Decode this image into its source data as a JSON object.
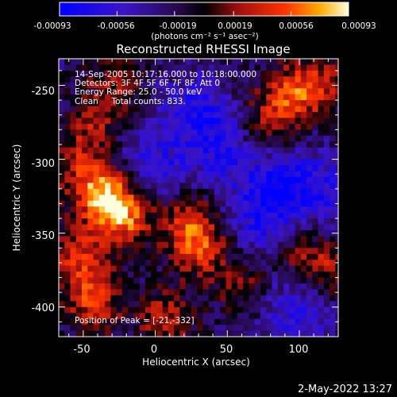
{
  "colorbar": {
    "ticks": [
      "-0.00093",
      "-0.00056",
      "-0.00019",
      "0.00019",
      "0.00056",
      "0.00093"
    ],
    "tick_values": [
      -0.00093,
      -0.00056,
      -0.00019,
      0.00019,
      0.00056,
      0.00093
    ],
    "units": "(photons cm⁻² s⁻¹ asec⁻²)",
    "colors": [
      "#0000ff",
      "#4a1aa8",
      "#000000",
      "#a01010",
      "#ff3300",
      "#ff9900",
      "#ffffcc"
    ]
  },
  "chart_data": {
    "type": "heatmap",
    "title": "Reconstructed RHESSI Image",
    "xlabel": "Heliocentric X (arcsec)",
    "ylabel": "Heliocentric Y (arcsec)",
    "xlim": [
      -67,
      127
    ],
    "ylim": [
      -420,
      -232
    ],
    "xticks": [
      -50,
      0,
      50,
      100
    ],
    "yticks": [
      -250,
      -300,
      -350,
      -400
    ],
    "value_range": [
      -0.00093,
      0.00093
    ],
    "peak_position": [
      -21,
      -332
    ],
    "hot_regions_arcsec": [
      {
        "x": -25,
        "y": -335,
        "value": 0.00093
      },
      {
        "x": -40,
        "y": -320,
        "value": 0.0008
      },
      {
        "x": 30,
        "y": -360,
        "value": 0.0006
      },
      {
        "x": 20,
        "y": -340,
        "value": 0.00055
      },
      {
        "x": -55,
        "y": -365,
        "value": 0.0006
      },
      {
        "x": -45,
        "y": -395,
        "value": 0.0006
      },
      {
        "x": 75,
        "y": -275,
        "value": 0.00045
      },
      {
        "x": 90,
        "y": -255,
        "value": 0.0005
      },
      {
        "x": 110,
        "y": -248,
        "value": 0.00055
      },
      {
        "x": -45,
        "y": -275,
        "value": 0.0004
      },
      {
        "x": 5,
        "y": -405,
        "value": 0.0005
      },
      {
        "x": 100,
        "y": -360,
        "value": 0.0004
      },
      {
        "x": 120,
        "y": -375,
        "value": 0.0004
      },
      {
        "x": 60,
        "y": -385,
        "value": 0.00035
      },
      {
        "x": -30,
        "y": -245,
        "value": 0.0004
      },
      {
        "x": -60,
        "y": -300,
        "value": 0.00035
      }
    ],
    "cold_regions_arcsec": [
      {
        "x": 25,
        "y": -265,
        "value": -0.00045
      },
      {
        "x": 85,
        "y": -315,
        "value": -0.0005
      },
      {
        "x": 95,
        "y": -400,
        "value": -0.00045
      },
      {
        "x": 45,
        "y": -290,
        "value": -0.0004
      },
      {
        "x": -5,
        "y": -305,
        "value": -0.0004
      },
      {
        "x": 115,
        "y": -320,
        "value": -0.00035
      },
      {
        "x": 70,
        "y": -340,
        "value": -0.0004
      }
    ]
  },
  "annotations": {
    "line1": "14-Sep-2005 10:17:16.000 to 10:18:00.000",
    "line2": "Detectors: 3F 4F 5F 6F 7F 8F, Att 0",
    "line3": "Energy Range: 25.0 - 50.0 keV",
    "line4": "Clean     Total counts: 833.",
    "peak": "Position of Peak = [-21,-332]"
  },
  "timestamp": "2-May-2022 13:27"
}
